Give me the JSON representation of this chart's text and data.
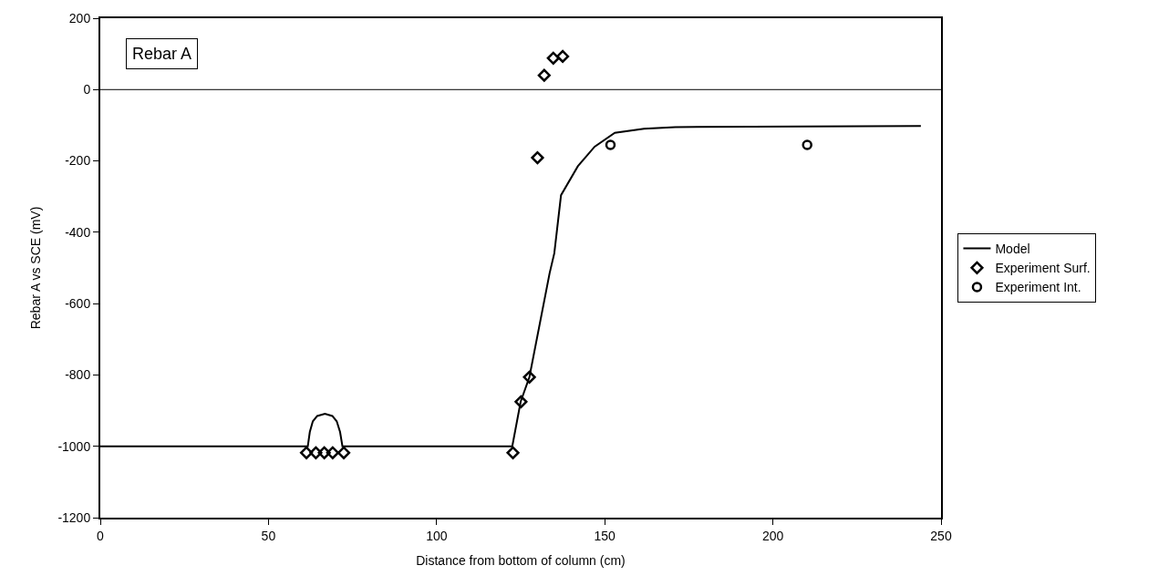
{
  "chart_data": {
    "type": "scatter",
    "xlabel": "Distance from bottom of column (cm)",
    "ylabel": "Rebar A vs SCE (mV)",
    "annotations": [
      "Rebar A"
    ],
    "xlim": [
      0,
      250
    ],
    "xticks": [
      0,
      50,
      100,
      150,
      200,
      250
    ],
    "ylim": [
      -1200,
      200
    ],
    "yticks": [
      -1200,
      -1000,
      -800,
      -600,
      -400,
      -200,
      0,
      200
    ],
    "legend": "right",
    "ref_lines": [
      {
        "axis": "y",
        "value": 0
      }
    ],
    "series": [
      {
        "name": "Model",
        "type": "line",
        "color": "#000000",
        "marker": "none",
        "line_style": "solid",
        "x": [
          0,
          61.7,
          62.3,
          63.2,
          64.5,
          66.8,
          69,
          70.3,
          71.3,
          72,
          122.5,
          125,
          127.6,
          133.6,
          135,
          137,
          142,
          147,
          153,
          161.7,
          171,
          244
        ],
        "values": [
          -1000,
          -1000,
          -960,
          -930,
          -915,
          -909,
          -915,
          -930,
          -960,
          -1000,
          -1000,
          -875,
          -806,
          -515,
          -459,
          -296,
          -215,
          -160,
          -121,
          -110,
          -105,
          -102
        ]
      },
      {
        "name": "Experiment Surf.",
        "color": "#000000",
        "marker": "diamond",
        "x": [
          61.3,
          64.1,
          66.6,
          69.1,
          72.4,
          122.7,
          125.1,
          127.6,
          130,
          132,
          134.7,
          137.5
        ],
        "values": [
          -1018,
          -1018,
          -1018,
          -1018,
          -1018,
          -1018,
          -875,
          -806,
          -191,
          40,
          88,
          93
        ]
      },
      {
        "name": "Experiment Int.",
        "color": "#000000",
        "marker": "circle",
        "x": [
          151.7,
          210.2
        ],
        "values": [
          -155,
          -155
        ]
      }
    ]
  }
}
